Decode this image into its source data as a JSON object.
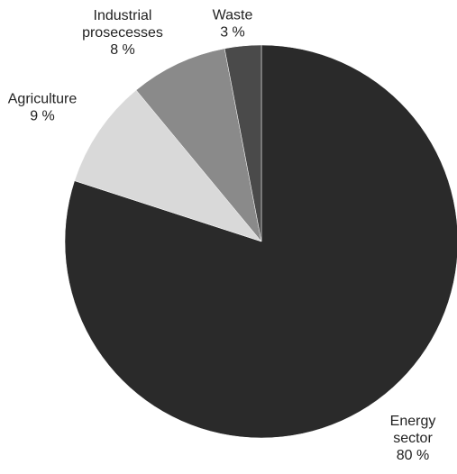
{
  "chart_data": {
    "type": "pie",
    "title": "",
    "unit_suffix": " %",
    "start_angle_deg": 0,
    "direction": "clockwise",
    "slices": [
      {
        "label_lines": [
          "Energy",
          "sector"
        ],
        "value": 80,
        "value_text": "80 %",
        "color": "#2a2a2a"
      },
      {
        "label_lines": [
          "Agriculture"
        ],
        "value": 9,
        "value_text": "9 %",
        "color": "#d9d9d9"
      },
      {
        "label_lines": [
          "Industrial",
          "prosecesses"
        ],
        "value": 8,
        "value_text": "8 %",
        "color": "#8a8a8a"
      },
      {
        "label_lines": [
          "Waste"
        ],
        "value": 3,
        "value_text": "3 %",
        "color": "#4a4a4a"
      }
    ]
  }
}
